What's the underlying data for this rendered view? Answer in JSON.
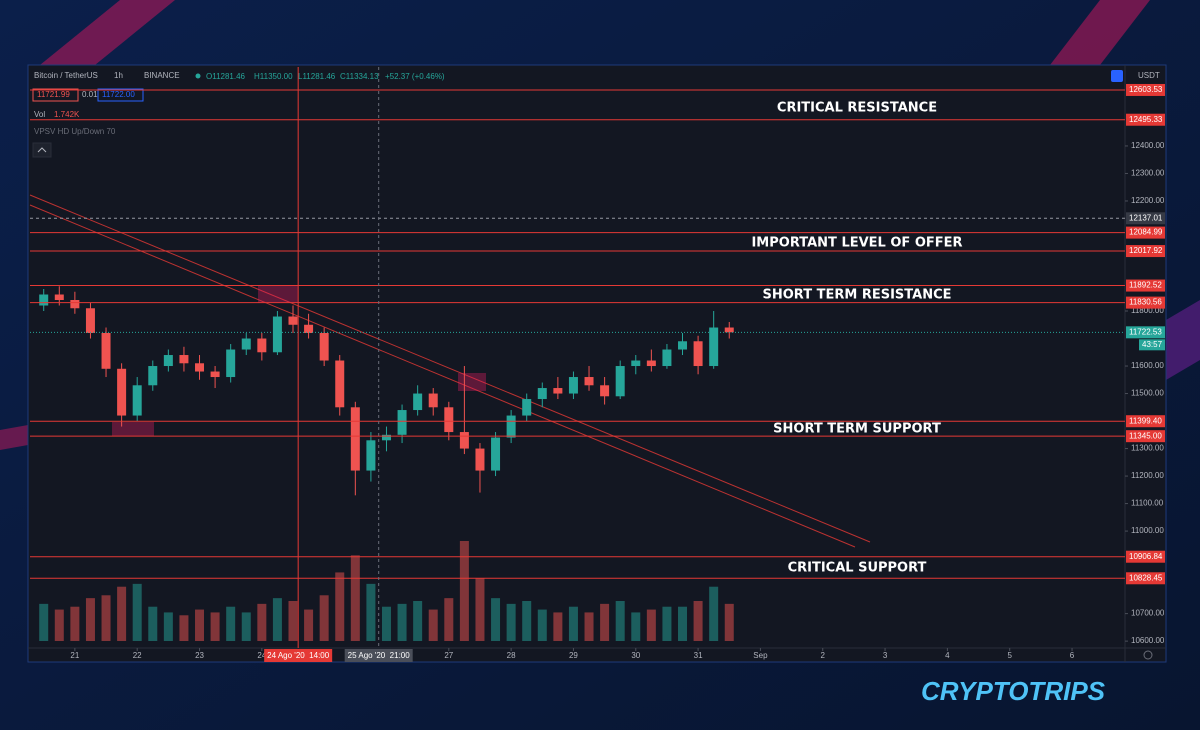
{
  "header": {
    "symbol": "Bitcoin / TetherUS",
    "interval": "1h",
    "exchange": "BINANCE",
    "ohlc": [
      "O11281.46",
      "H11350.00",
      "L11281.46",
      "C11334.13",
      "+52.37 (+0.46%)"
    ],
    "bid": "11721.99",
    "spread": "0.01",
    "ask": "11722.00",
    "volume_label": "Vol",
    "volume_value": "1.742K",
    "indicator": "VPSV HD Up/Down 70",
    "currency": "USDT",
    "brand": "CRYPTOTRIPS"
  },
  "chart_data": {
    "type": "candlestick",
    "x": [
      20.5,
      20.75,
      21,
      21.25,
      21.5,
      21.75,
      22,
      22.25,
      22.5,
      22.75,
      23,
      23.25,
      23.5,
      23.75,
      24,
      24.25,
      24.5,
      24.75,
      25,
      25.25,
      25.5,
      25.75,
      26,
      26.25,
      26.5,
      26.75,
      27,
      27.25,
      27.5,
      27.75,
      28,
      28.25,
      28.5,
      28.75,
      29,
      29.25,
      29.5,
      29.75,
      30,
      30.25,
      30.5,
      30.75,
      31,
      31.25,
      31.5
    ],
    "open": [
      11820,
      11860,
      11840,
      11810,
      11720,
      11590,
      11420,
      11530,
      11600,
      11640,
      11610,
      11580,
      11560,
      11660,
      11700,
      11650,
      11780,
      11750,
      11720,
      11620,
      11450,
      11220,
      11330,
      11350,
      11440,
      11500,
      11450,
      11360,
      11300,
      11220,
      11340,
      11420,
      11480,
      11520,
      11500,
      11560,
      11530,
      11490,
      11600,
      11620,
      11600,
      11660,
      11690,
      11600,
      11740
    ],
    "high": [
      11880,
      11890,
      11870,
      11830,
      11740,
      11610,
      11560,
      11620,
      11660,
      11670,
      11640,
      11600,
      11680,
      11720,
      11720,
      11800,
      11820,
      11790,
      11740,
      11640,
      11470,
      11360,
      11380,
      11460,
      11530,
      11520,
      11470,
      11600,
      11320,
      11360,
      11440,
      11500,
      11540,
      11560,
      11580,
      11600,
      11560,
      11620,
      11640,
      11660,
      11680,
      11720,
      11710,
      11800,
      11760
    ],
    "low": [
      11800,
      11820,
      11790,
      11700,
      11560,
      11380,
      11400,
      11510,
      11580,
      11580,
      11550,
      11520,
      11540,
      11640,
      11620,
      11640,
      11720,
      11700,
      11600,
      11420,
      11130,
      11180,
      11290,
      11320,
      11420,
      11420,
      11330,
      11280,
      11140,
      11200,
      11320,
      11400,
      11450,
      11480,
      11480,
      11510,
      11460,
      11480,
      11570,
      11580,
      11590,
      11640,
      11570,
      11590,
      11700
    ],
    "close": [
      11860,
      11840,
      11810,
      11720,
      11590,
      11420,
      11530,
      11600,
      11640,
      11610,
      11580,
      11560,
      11660,
      11700,
      11650,
      11780,
      11750,
      11720,
      11620,
      11450,
      11220,
      11330,
      11350,
      11440,
      11500,
      11450,
      11360,
      11300,
      11220,
      11340,
      11420,
      11480,
      11520,
      11500,
      11560,
      11530,
      11490,
      11600,
      11620,
      11600,
      11660,
      11690,
      11600,
      11740,
      11722.53
    ],
    "volume": [
      1300,
      1100,
      1200,
      1500,
      1600,
      1900,
      2000,
      1200,
      1000,
      900,
      1100,
      1000,
      1200,
      1000,
      1300,
      1500,
      1400,
      1100,
      1600,
      2400,
      3000,
      2000,
      1200,
      1300,
      1400,
      1100,
      1500,
      3500,
      2200,
      1500,
      1300,
      1400,
      1100,
      1000,
      1200,
      1000,
      1300,
      1400,
      1000,
      1100,
      1200,
      1200,
      1400,
      1900,
      1300
    ],
    "colors": {
      "up": "#26a69a",
      "down": "#ef5350",
      "level": "#e53935"
    },
    "xlim": [
      20.28,
      37.85
    ],
    "ylim": [
      10575,
      12687
    ],
    "xticks": [
      21,
      22,
      23,
      24,
      27,
      28,
      29,
      30,
      31,
      {
        "value": 32,
        "label": "Sep"
      },
      {
        "value": 33,
        "label": "2"
      },
      {
        "value": 34,
        "label": "3"
      },
      {
        "value": 35,
        "label": "4"
      },
      {
        "value": 36,
        "label": "5"
      },
      {
        "value": 37,
        "label": "6"
      }
    ],
    "yticks": [
      {
        "value": 10600,
        "label": "10600.00"
      },
      {
        "value": 10700,
        "label": "10700.00"
      },
      {
        "value": 11000,
        "label": "11000.00"
      },
      {
        "value": 11100,
        "label": "11100.00"
      },
      {
        "value": 11200,
        "label": "11200.00"
      },
      {
        "value": 11300,
        "label": "11300.00"
      },
      {
        "value": 11500,
        "label": "11500.00"
      },
      {
        "value": 11600,
        "label": "11600.00"
      },
      {
        "value": 11800,
        "label": "11800.00"
      },
      {
        "value": 12200,
        "label": "12200.00"
      },
      {
        "value": 12300,
        "label": "12300.00"
      },
      {
        "value": 12400,
        "label": "12400.00"
      }
    ],
    "levels": [
      12603.53,
      12495.33,
      12084.99,
      12017.92,
      11892.52,
      11830.56,
      {
        "value": 11399.4,
        "label": "11399.40"
      },
      {
        "value": 11345,
        "label": "11345.00"
      },
      10906.84,
      10828.45
    ],
    "annotations": [
      "CRITICAL RESISTANCE",
      "IMPORTANT LEVEL OF OFFER",
      "SHORT TERM RESISTANCE",
      "SHORT TERM SUPPORT",
      "CRITICAL SUPPORT"
    ],
    "current_price": 11722.53,
    "countdown": "43:57",
    "crosshair_price": 12137.01,
    "crosshair_x": [
      24.583,
      25.875
    ],
    "crosshair_labels": [
      "24 Ago '20  14:00",
      "25 Ago '20  21:00"
    ]
  }
}
